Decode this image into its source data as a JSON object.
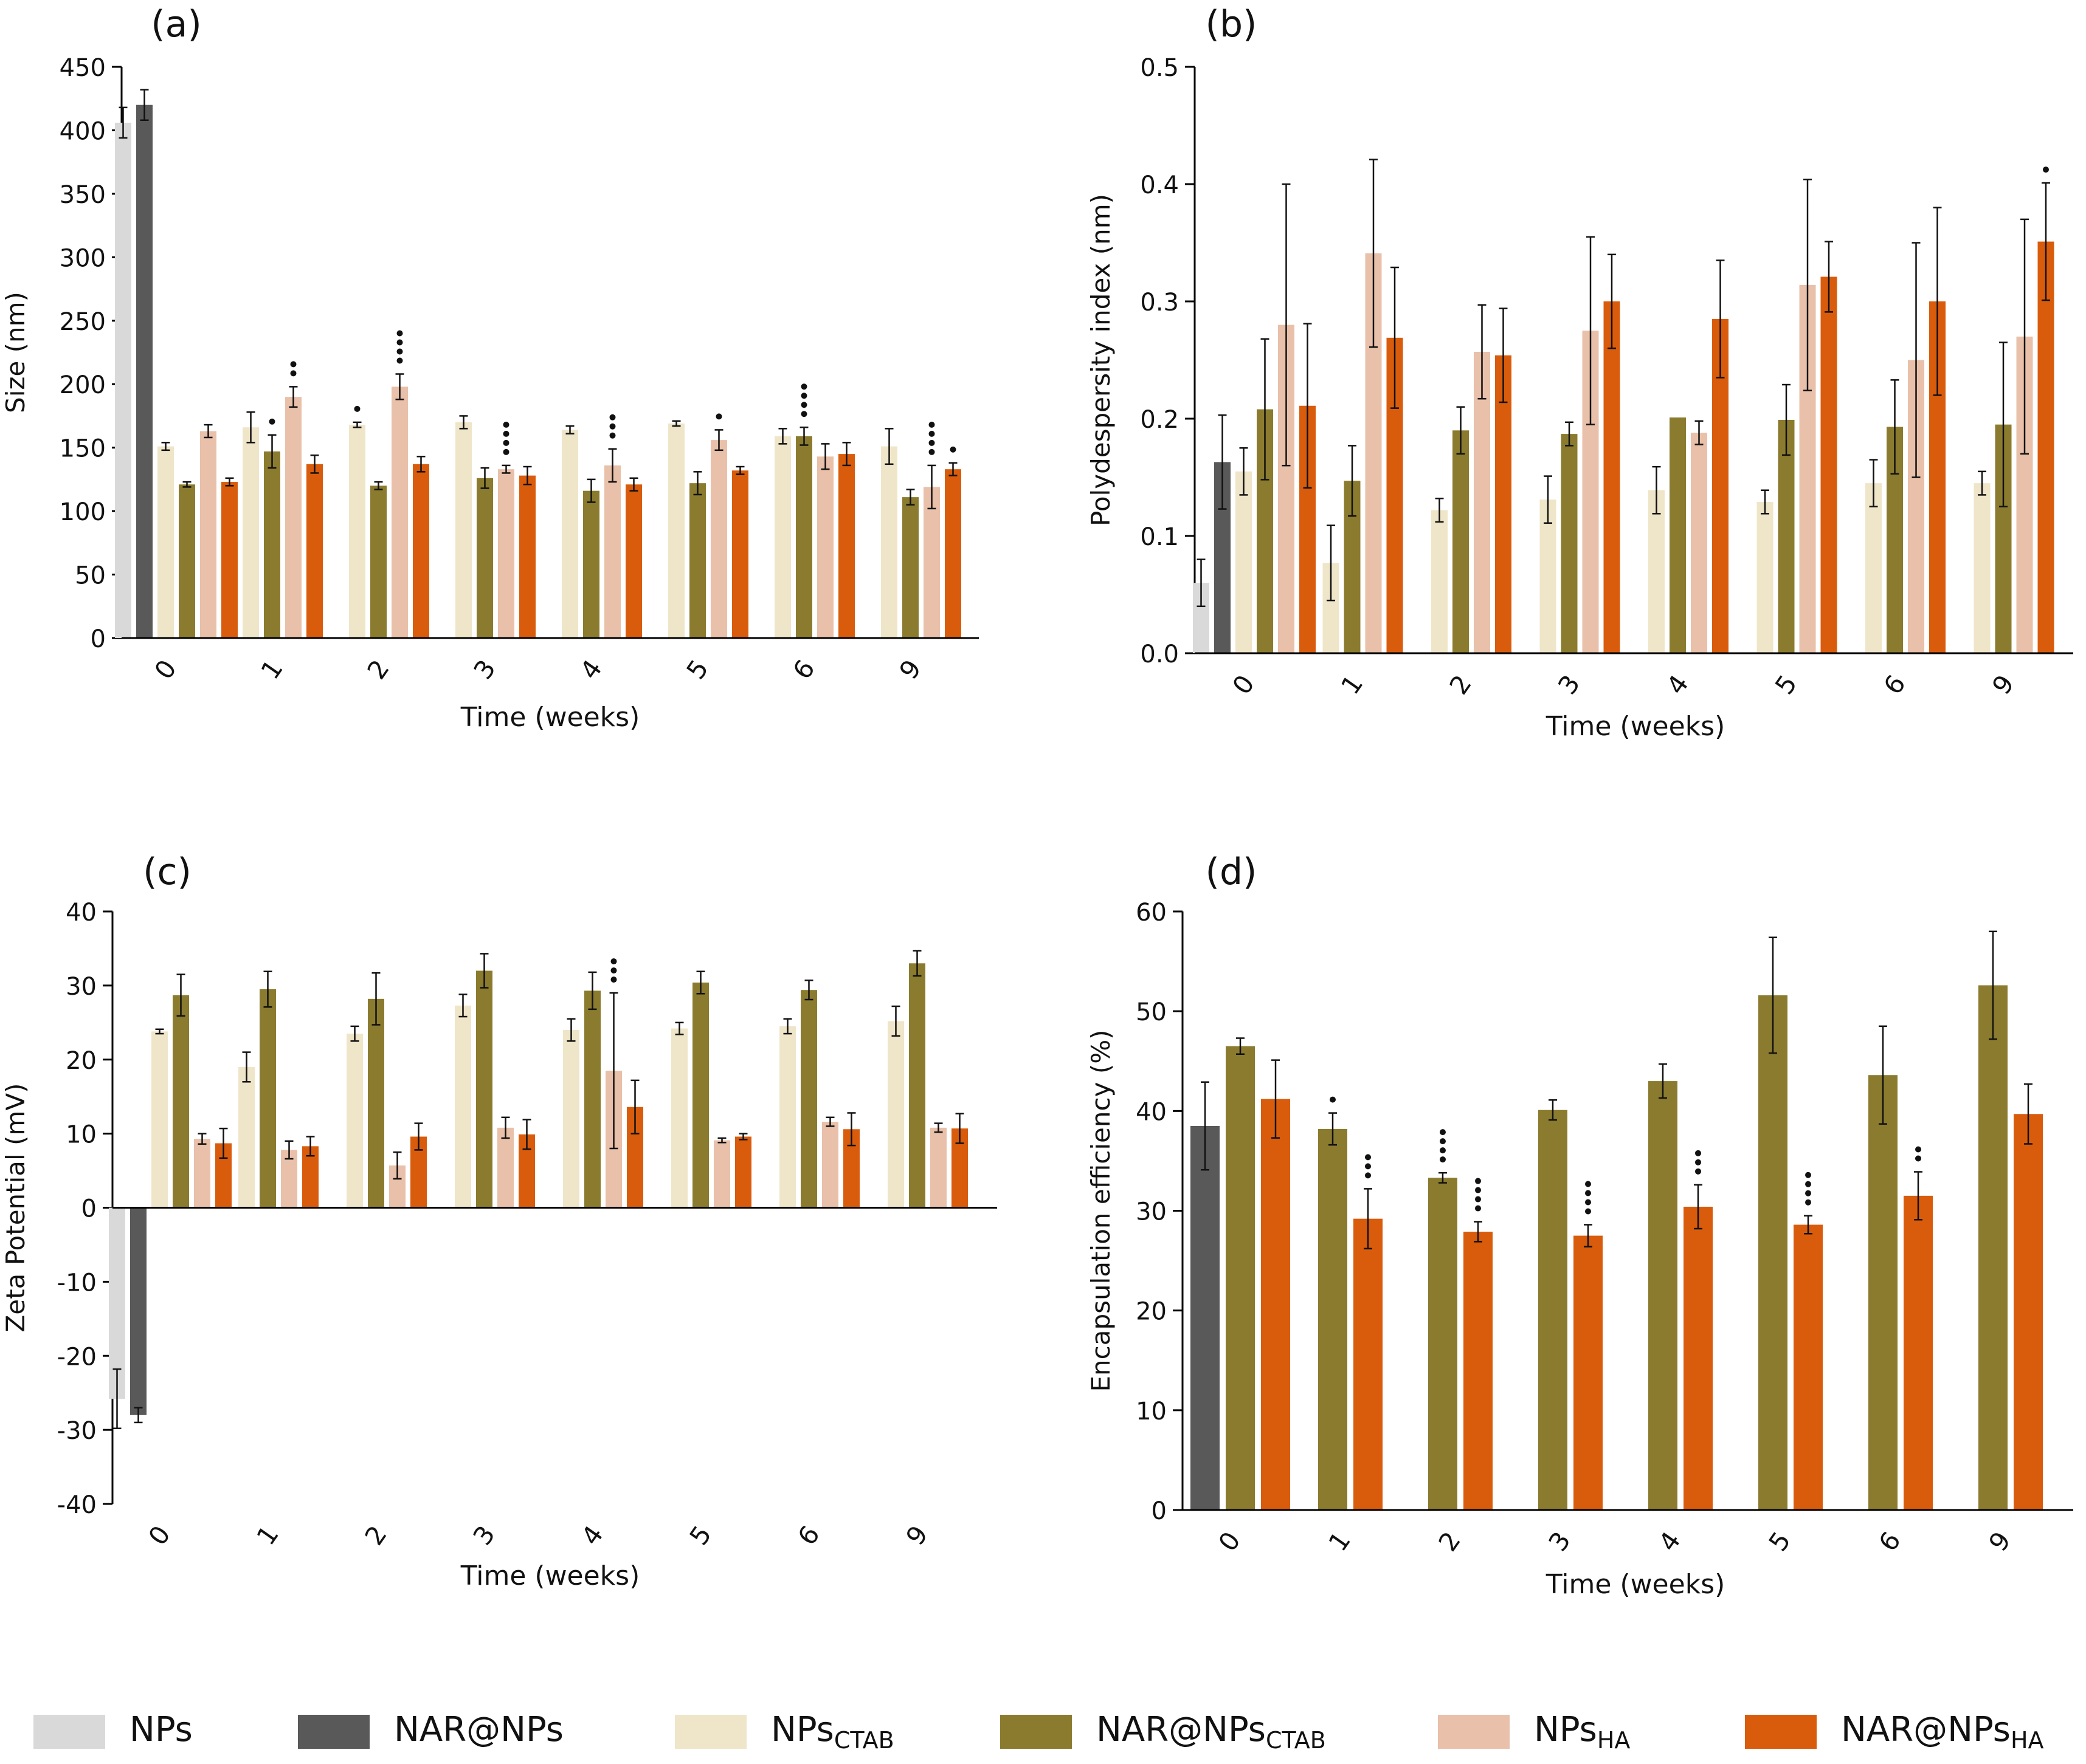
{
  "chart_data": [
    {
      "type": "bar",
      "panel_label": "(a)",
      "xlabel": "Time (weeks)",
      "ylabel": "Size (nm)",
      "ylim": [
        0,
        450
      ],
      "yticks": [
        0,
        50,
        100,
        150,
        200,
        250,
        300,
        350,
        400,
        450
      ],
      "ytick_labels": [
        "0",
        "50",
        "100",
        "150",
        "200",
        "250",
        "300",
        "350",
        "400",
        "450"
      ],
      "categories": [
        "0",
        "1",
        "2",
        "3",
        "4",
        "5",
        "6",
        "9"
      ],
      "series": [
        {
          "name": "NPs",
          "values": [
            406,
            null,
            null,
            null,
            null,
            null,
            null,
            null
          ],
          "errors": [
            12,
            null,
            null,
            null,
            null,
            null,
            null,
            null
          ]
        },
        {
          "name": "NAR@NPs",
          "values": [
            420,
            null,
            null,
            null,
            null,
            null,
            null,
            null
          ],
          "errors": [
            12,
            null,
            null,
            null,
            null,
            null,
            null,
            null
          ]
        },
        {
          "name": "NPsCTAB",
          "values": [
            151,
            166,
            168,
            170,
            164,
            169,
            159,
            151
          ],
          "errors": [
            3,
            12,
            2,
            5,
            3,
            2,
            6,
            14
          ]
        },
        {
          "name": "NAR@NPsCTAB",
          "values": [
            121,
            147,
            120,
            126,
            116,
            122,
            159,
            111
          ],
          "errors": [
            2,
            13,
            3,
            8,
            9,
            9,
            7,
            6
          ]
        },
        {
          "name": "NPsHA",
          "values": [
            163,
            190,
            198,
            133,
            136,
            156,
            143,
            119
          ],
          "errors": [
            5,
            8,
            10,
            3,
            13,
            8,
            10,
            17
          ]
        },
        {
          "name": "NAR@NPsHA",
          "values": [
            123,
            137,
            137,
            128,
            121,
            132,
            145,
            133
          ],
          "errors": [
            3,
            7,
            6,
            7,
            5,
            3,
            9,
            5
          ]
        }
      ],
      "significance": [
        {
          "category": "1",
          "series": "NAR@NPsCTAB",
          "dots": 1
        },
        {
          "category": "1",
          "series": "NPsHA",
          "dots": 2
        },
        {
          "category": "2",
          "series": "NPsCTAB",
          "dots": 1
        },
        {
          "category": "2",
          "series": "NPsHA",
          "dots": 4
        },
        {
          "category": "3",
          "series": "NPsHA",
          "dots": 4
        },
        {
          "category": "4",
          "series": "NPsHA",
          "dots": 3
        },
        {
          "category": "5",
          "series": "NPsHA",
          "dots": 1
        },
        {
          "category": "6",
          "series": "NAR@NPsCTAB",
          "dots": 4
        },
        {
          "category": "9",
          "series": "NPsHA",
          "dots": 4
        },
        {
          "category": "9",
          "series": "NAR@NPsHA",
          "dots": 1
        }
      ]
    },
    {
      "type": "bar",
      "panel_label": "(b)",
      "xlabel": "Time (weeks)",
      "ylabel": "Polydespersity index (nm)",
      "ylim": [
        0,
        0.5
      ],
      "yticks": [
        0,
        0.1,
        0.2,
        0.3,
        0.4,
        0.5
      ],
      "ytick_labels": [
        "0.0",
        "0.1",
        "0.2",
        "0.3",
        "0.4",
        "0.5"
      ],
      "categories": [
        "0",
        "1",
        "2",
        "3",
        "4",
        "5",
        "6",
        "9"
      ],
      "series": [
        {
          "name": "NPs",
          "values": [
            0.06,
            null,
            null,
            null,
            null,
            null,
            null,
            null
          ],
          "errors": [
            0.02,
            null,
            null,
            null,
            null,
            null,
            null,
            null
          ]
        },
        {
          "name": "NAR@NPs",
          "values": [
            0.163,
            null,
            null,
            null,
            null,
            null,
            null,
            null
          ],
          "errors": [
            0.04,
            null,
            null,
            null,
            null,
            null,
            null,
            null
          ]
        },
        {
          "name": "NPsCTAB",
          "values": [
            0.155,
            0.077,
            0.122,
            0.131,
            0.139,
            0.129,
            0.145,
            0.145
          ],
          "errors": [
            0.02,
            0.032,
            0.01,
            0.02,
            0.02,
            0.01,
            0.02,
            0.01
          ]
        },
        {
          "name": "NAR@NPsCTAB",
          "values": [
            0.208,
            0.147,
            0.19,
            0.187,
            0.201,
            0.199,
            0.193,
            0.195
          ],
          "errors": [
            0.06,
            0.03,
            0.02,
            0.01,
            0,
            0.03,
            0.04,
            0.07
          ]
        },
        {
          "name": "NPsHA",
          "values": [
            0.28,
            0.341,
            0.257,
            0.275,
            0.188,
            0.314,
            0.25,
            0.27
          ],
          "errors": [
            0.12,
            0.08,
            0.04,
            0.08,
            0.01,
            0.09,
            0.1,
            0.1
          ]
        },
        {
          "name": "NAR@NPsHA",
          "values": [
            0.211,
            0.269,
            0.254,
            0.3,
            0.285,
            0.321,
            0.3,
            0.351
          ],
          "errors": [
            0.07,
            0.06,
            0.04,
            0.04,
            0.05,
            0.03,
            0.08,
            0.05
          ]
        }
      ],
      "significance": [
        {
          "category": "9",
          "series": "NAR@NPsHA",
          "dots": 1
        }
      ]
    },
    {
      "type": "bar",
      "panel_label": "(c)",
      "xlabel": "Time (weeks)",
      "ylabel": "Zeta Potential (mV)",
      "ylim": [
        -40,
        40
      ],
      "yticks": [
        -40,
        -30,
        -20,
        -10,
        0,
        10,
        20,
        30,
        40
      ],
      "ytick_labels": [
        "-40",
        "-30",
        "-20",
        "-10",
        "0",
        "10",
        "20",
        "30",
        "40"
      ],
      "categories": [
        "0",
        "1",
        "2",
        "3",
        "4",
        "5",
        "6",
        "9"
      ],
      "series": [
        {
          "name": "NPs",
          "values": [
            -25.8,
            null,
            null,
            null,
            null,
            null,
            null,
            null
          ],
          "errors": [
            4,
            null,
            null,
            null,
            null,
            null,
            null,
            null
          ]
        },
        {
          "name": "NAR@NPs",
          "values": [
            -28,
            null,
            null,
            null,
            null,
            null,
            null,
            null
          ],
          "errors": [
            1,
            null,
            null,
            null,
            null,
            null,
            null,
            null
          ]
        },
        {
          "name": "NPsCTAB",
          "values": [
            23.8,
            19,
            23.5,
            27.3,
            24,
            24.2,
            24.5,
            25.2
          ],
          "errors": [
            0.3,
            2,
            1,
            1.5,
            1.5,
            0.8,
            1,
            2
          ]
        },
        {
          "name": "NAR@NPsCTAB",
          "values": [
            28.7,
            29.5,
            28.2,
            32,
            29.3,
            30.4,
            29.4,
            33
          ],
          "errors": [
            2.8,
            2.4,
            3.5,
            2.3,
            2.5,
            1.5,
            1.3,
            1.7
          ]
        },
        {
          "name": "NPsHA",
          "values": [
            9.3,
            7.8,
            5.7,
            10.8,
            18.5,
            9.1,
            11.6,
            10.8
          ],
          "errors": [
            0.7,
            1.2,
            1.8,
            1.4,
            10.5,
            0.3,
            0.6,
            0.6
          ]
        },
        {
          "name": "NAR@NPsHA",
          "values": [
            8.7,
            8.3,
            9.6,
            9.9,
            13.6,
            9.6,
            10.6,
            10.7
          ],
          "errors": [
            2,
            1.3,
            1.8,
            2,
            3.6,
            0.4,
            2.2,
            2
          ]
        }
      ],
      "significance": [
        {
          "category": "4",
          "series": "NPsHA",
          "dots": 3
        }
      ]
    },
    {
      "type": "bar",
      "panel_label": "(d)",
      "xlabel": "Time (weeks)",
      "ylabel": "Encapsulation efficiency (%)",
      "ylim": [
        0,
        60
      ],
      "yticks": [
        0,
        10,
        20,
        30,
        40,
        50,
        60
      ],
      "ytick_labels": [
        "0",
        "10",
        "20",
        "30",
        "40",
        "50",
        "60"
      ],
      "categories": [
        "0",
        "1",
        "2",
        "3",
        "4",
        "5",
        "6",
        "9"
      ],
      "series": [
        {
          "name": "NAR@NPs",
          "values": [
            38.5,
            null,
            null,
            null,
            null,
            null,
            null,
            null
          ],
          "errors": [
            4.4,
            null,
            null,
            null,
            null,
            null,
            null,
            null
          ]
        },
        {
          "name": "NAR@NPsCTAB",
          "values": [
            46.5,
            38.2,
            33.3,
            40.1,
            43,
            51.6,
            43.6,
            52.6
          ],
          "errors": [
            0.8,
            1.6,
            0.5,
            1,
            1.7,
            5.8,
            4.9,
            5.4
          ]
        },
        {
          "name": "NAR@NPsHA",
          "values": [
            41.2,
            29.2,
            27.9,
            27.5,
            30.4,
            28.6,
            31.5,
            39.7
          ],
          "errors": [
            3.9,
            3,
            1,
            1.1,
            2.2,
            0.9,
            2.4,
            3
          ]
        }
      ],
      "significance": [
        {
          "category": "1",
          "series": "NAR@NPsCTAB",
          "dots": 1
        },
        {
          "category": "1",
          "series": "NAR@NPsHA",
          "dots": 3
        },
        {
          "category": "2",
          "series": "NAR@NPsCTAB",
          "dots": 4
        },
        {
          "category": "2",
          "series": "NAR@NPsHA",
          "dots": 4
        },
        {
          "category": "3",
          "series": "NAR@NPsHA",
          "dots": 4
        },
        {
          "category": "4",
          "series": "NAR@NPsHA",
          "dots": 3
        },
        {
          "category": "5",
          "series": "NAR@NPsHA",
          "dots": 4
        },
        {
          "category": "6",
          "series": "NAR@NPsHA",
          "dots": 2
        }
      ]
    }
  ],
  "colors": {
    "NPs": "#d9d9d9",
    "NAR@NPs": "#595959",
    "NPsCTAB": "#efe5c8",
    "NAR@NPsCTAB": "#8b7b2e",
    "NPsHA": "#e9c0a9",
    "NAR@NPsHA": "#d95c0d"
  },
  "legend": [
    {
      "key": "NPs",
      "base": "NPs",
      "sub": ""
    },
    {
      "key": "NAR@NPs",
      "base": "NAR@NPs",
      "sub": ""
    },
    {
      "key": "NPsCTAB",
      "base": "NPs",
      "sub": "CTAB"
    },
    {
      "key": "NAR@NPsCTAB",
      "base": "NAR@NPs",
      "sub": "CTAB"
    },
    {
      "key": "NPsHA",
      "base": "NPs",
      "sub": "HA"
    },
    {
      "key": "NAR@NPsHA",
      "base": "NAR@NPs",
      "sub": "HA"
    }
  ]
}
